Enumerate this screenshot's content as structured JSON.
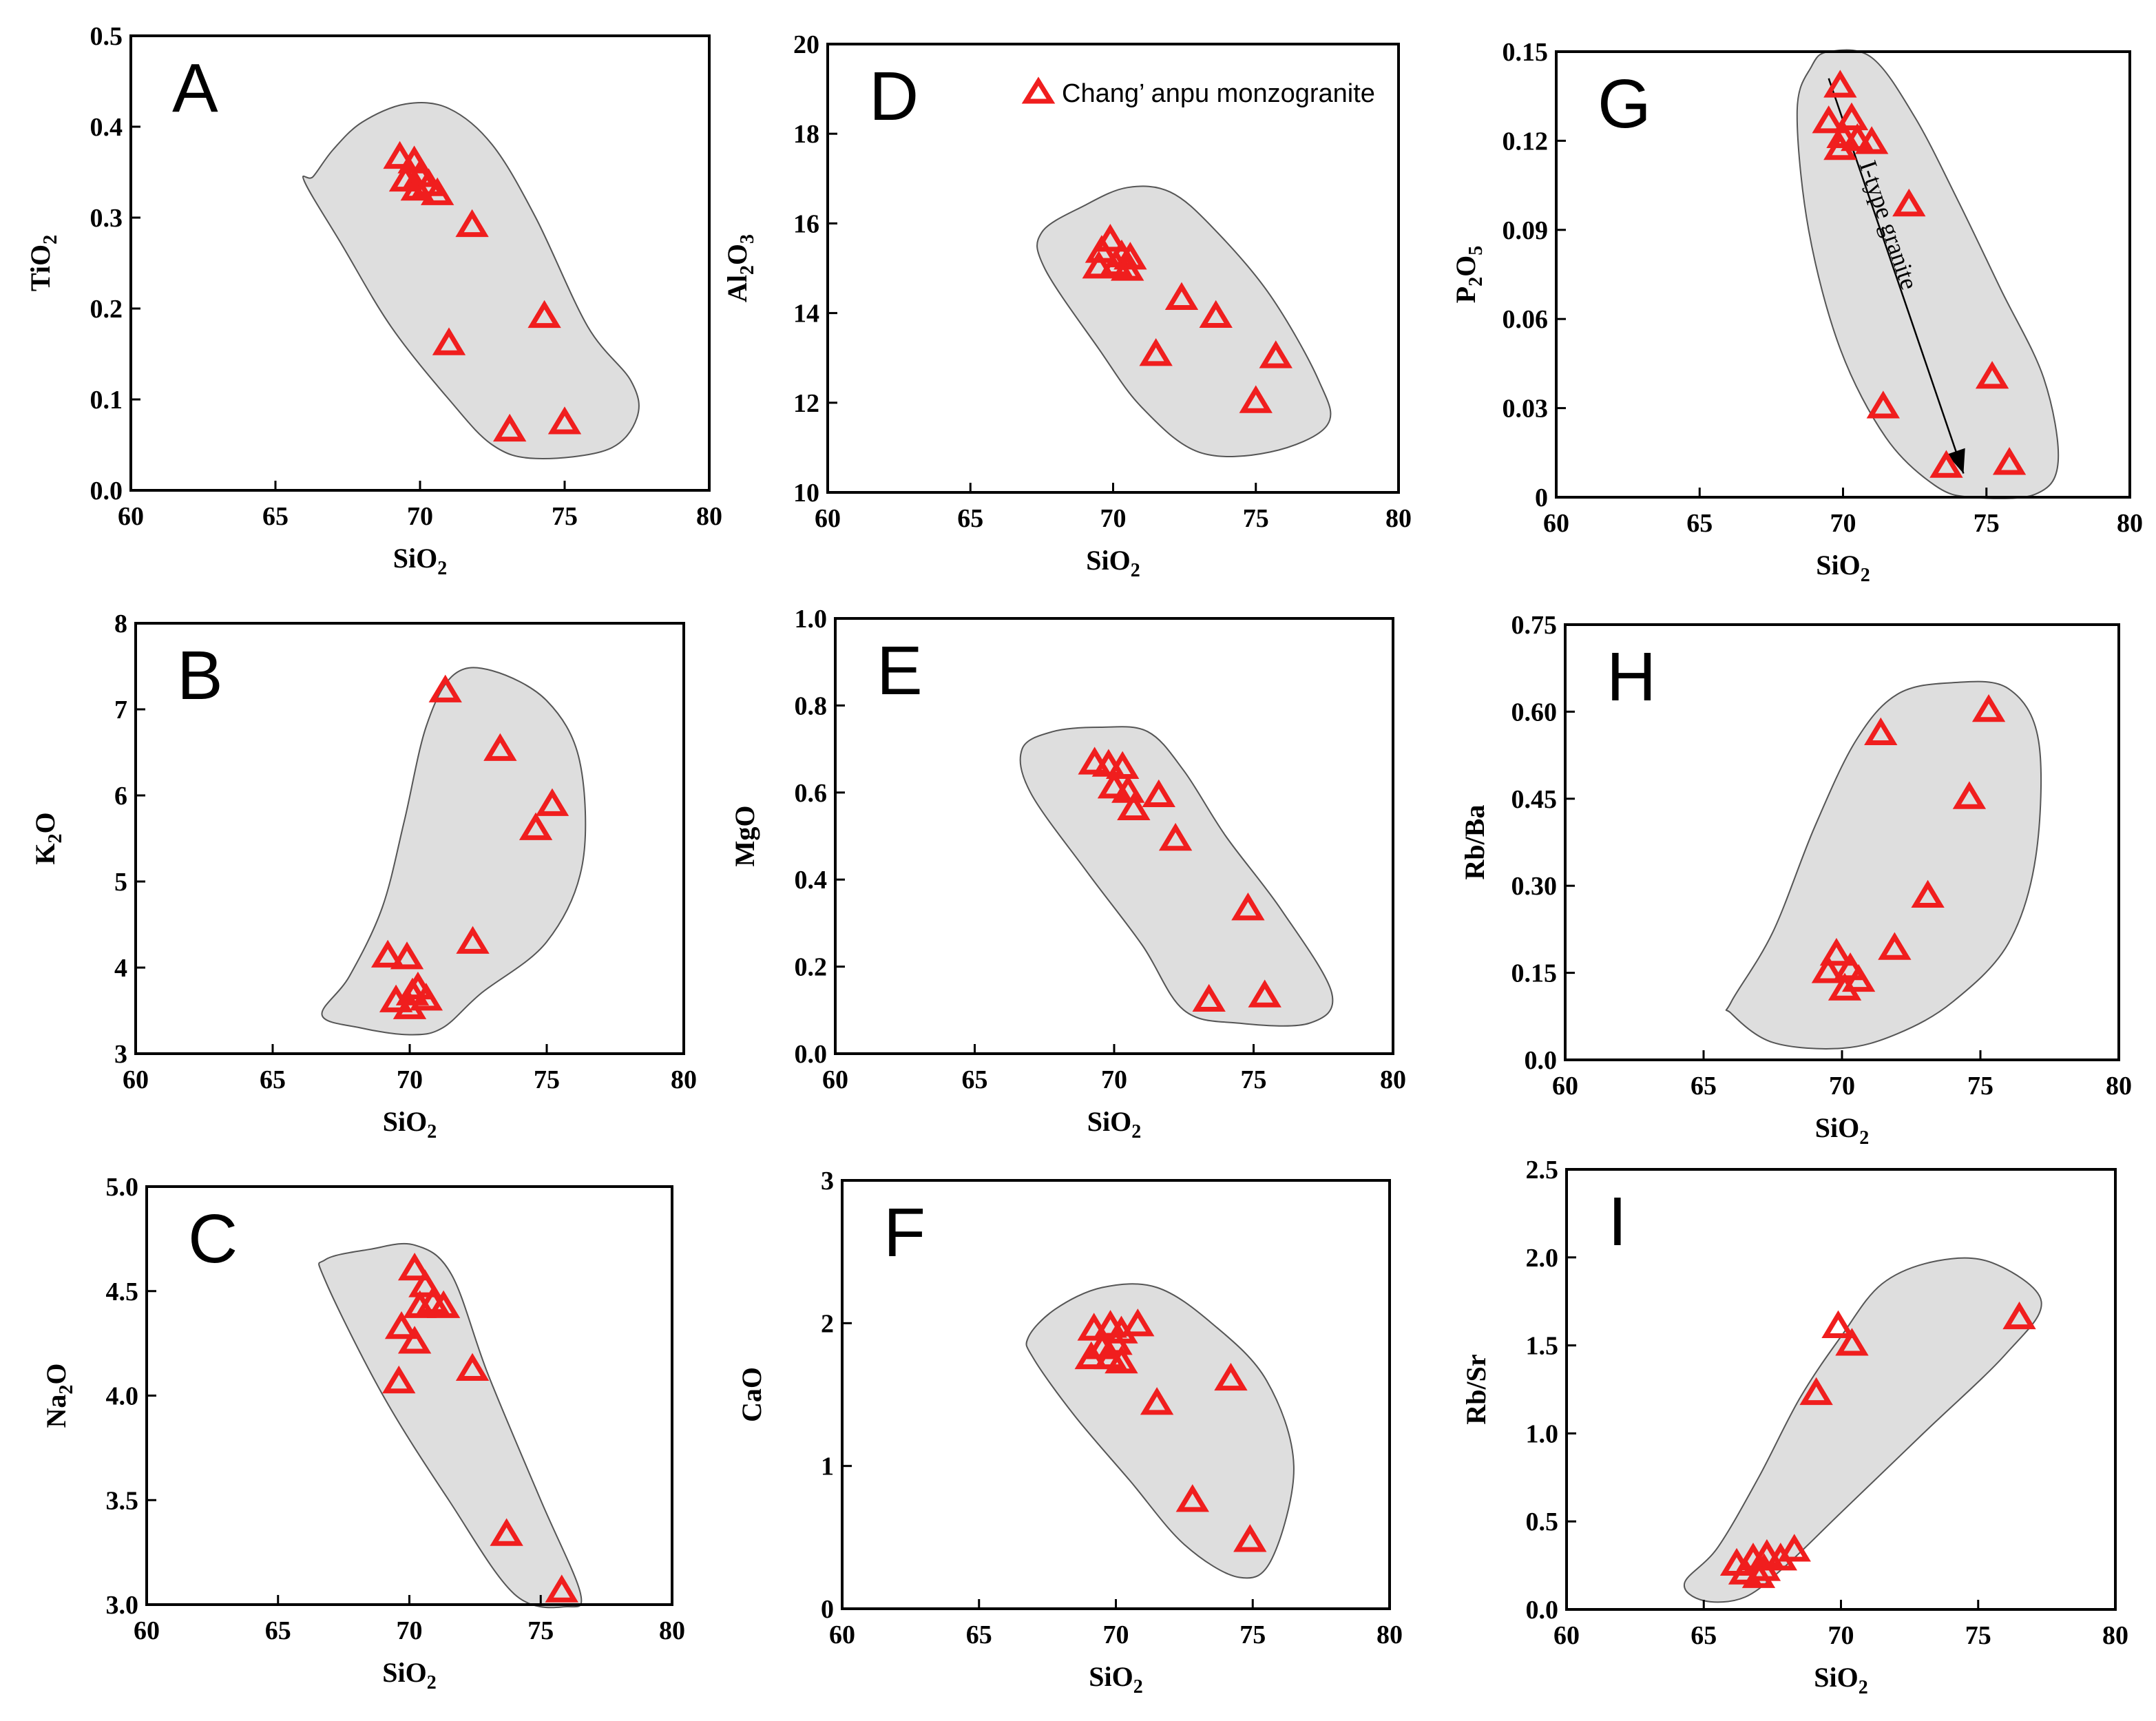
{
  "legend": {
    "label": "Chang’ anpu monzogranite",
    "marker_color": "#f01e1e"
  },
  "colors": {
    "marker": "#f01e1e",
    "field": "#dedede",
    "field_edge": "#555555"
  },
  "chart_data": [
    {
      "id": "A",
      "type": "scatter",
      "letter": "A",
      "xlabel": "SiO2",
      "ylabel": "TiO2",
      "xlim": [
        60,
        80
      ],
      "ylim": [
        0,
        0.5
      ],
      "xticks": [
        "60",
        "65",
        "70",
        "75",
        "80"
      ],
      "xtick_values": [
        60,
        65,
        70,
        75,
        80
      ],
      "yticks": [
        "0.0",
        "0.1",
        "0.2",
        "0.3",
        "0.4",
        "0.5"
      ],
      "ytick_values": [
        0,
        0.1,
        0.2,
        0.3,
        0.4,
        0.5
      ],
      "points": [
        [
          69.3,
          0.365
        ],
        [
          69.8,
          0.36
        ],
        [
          69.5,
          0.34
        ],
        [
          70.0,
          0.345
        ],
        [
          70.3,
          0.335
        ],
        [
          70.6,
          0.325
        ],
        [
          69.9,
          0.33
        ],
        [
          71.8,
          0.29
        ],
        [
          71.0,
          0.16
        ],
        [
          74.3,
          0.19
        ],
        [
          73.1,
          0.065
        ],
        [
          75.0,
          0.073
        ]
      ],
      "field": [
        [
          66.3,
          0.345
        ],
        [
          67.0,
          0.375
        ],
        [
          68.0,
          0.405
        ],
        [
          69.5,
          0.425
        ],
        [
          71.0,
          0.42
        ],
        [
          72.5,
          0.38
        ],
        [
          74.0,
          0.3
        ],
        [
          75.8,
          0.18
        ],
        [
          77.3,
          0.12
        ],
        [
          77.5,
          0.08
        ],
        [
          76.5,
          0.045
        ],
        [
          74.0,
          0.035
        ],
        [
          72.5,
          0.05
        ],
        [
          71.0,
          0.1
        ],
        [
          69.0,
          0.18
        ],
        [
          67.3,
          0.27
        ],
        [
          66.0,
          0.34
        ]
      ]
    },
    {
      "id": "B",
      "type": "scatter",
      "letter": "B",
      "xlabel": "SiO2",
      "ylabel": "K2O",
      "xlim": [
        60,
        80
      ],
      "ylim": [
        3,
        8
      ],
      "xticks": [
        "60",
        "65",
        "70",
        "75",
        "80"
      ],
      "xtick_values": [
        60,
        65,
        70,
        75,
        80
      ],
      "yticks": [
        "3",
        "4",
        "5",
        "6",
        "7",
        "8"
      ],
      "ytick_values": [
        3,
        4,
        5,
        6,
        7,
        8
      ],
      "points": [
        [
          69.2,
          4.12
        ],
        [
          69.9,
          4.1
        ],
        [
          69.5,
          3.6
        ],
        [
          70.0,
          3.52
        ],
        [
          70.3,
          3.75
        ],
        [
          70.6,
          3.62
        ],
        [
          70.1,
          3.68
        ],
        [
          72.3,
          4.28
        ],
        [
          71.3,
          7.2
        ],
        [
          73.3,
          6.52
        ],
        [
          74.6,
          5.6
        ],
        [
          75.2,
          5.88
        ]
      ],
      "field": [
        [
          66.8,
          3.45
        ],
        [
          67.8,
          3.9
        ],
        [
          69.0,
          4.7
        ],
        [
          69.8,
          5.7
        ],
        [
          70.6,
          6.8
        ],
        [
          71.6,
          7.4
        ],
        [
          73.0,
          7.45
        ],
        [
          75.0,
          7.1
        ],
        [
          76.2,
          6.4
        ],
        [
          76.3,
          5.2
        ],
        [
          75.0,
          4.3
        ],
        [
          72.6,
          3.7
        ],
        [
          71.2,
          3.3
        ],
        [
          70.0,
          3.22
        ],
        [
          68.2,
          3.3
        ]
      ]
    },
    {
      "id": "C",
      "type": "scatter",
      "letter": "C",
      "xlabel": "SiO2",
      "ylabel": "Na2O",
      "xlim": [
        60,
        80
      ],
      "ylim": [
        3.0,
        5.0
      ],
      "xticks": [
        "60",
        "65",
        "70",
        "75",
        "80"
      ],
      "xtick_values": [
        60,
        65,
        70,
        75,
        80
      ],
      "yticks": [
        "3.0",
        "3.5",
        "4.0",
        "4.5",
        "5.0"
      ],
      "ytick_values": [
        3.0,
        3.5,
        4.0,
        4.5,
        5.0
      ],
      "points": [
        [
          70.2,
          4.6
        ],
        [
          70.6,
          4.52
        ],
        [
          70.4,
          4.42
        ],
        [
          70.9,
          4.44
        ],
        [
          71.3,
          4.42
        ],
        [
          69.7,
          4.32
        ],
        [
          70.2,
          4.25
        ],
        [
          69.6,
          4.06
        ],
        [
          72.4,
          4.12
        ],
        [
          73.7,
          3.33
        ],
        [
          75.8,
          3.06
        ]
      ],
      "field": [
        [
          66.8,
          4.65
        ],
        [
          68.5,
          4.7
        ],
        [
          70.2,
          4.72
        ],
        [
          71.6,
          4.58
        ],
        [
          73.0,
          4.1
        ],
        [
          75.0,
          3.5
        ],
        [
          76.5,
          3.06
        ],
        [
          76.0,
          2.99
        ],
        [
          74.0,
          3.05
        ],
        [
          71.5,
          3.5
        ],
        [
          69.0,
          4.0
        ],
        [
          66.8,
          4.55
        ]
      ]
    },
    {
      "id": "D",
      "type": "scatter",
      "letter": "D",
      "xlabel": "SiO2",
      "ylabel": "Al2O3",
      "xlim": [
        60,
        80
      ],
      "ylim": [
        10,
        20
      ],
      "xticks": [
        "60",
        "65",
        "70",
        "75",
        "80"
      ],
      "xtick_values": [
        60,
        65,
        70,
        75,
        80
      ],
      "yticks": [
        "10",
        "12",
        "14",
        "16",
        "18",
        "20"
      ],
      "ytick_values": [
        10,
        12,
        14,
        16,
        18,
        20
      ],
      "points": [
        [
          69.9,
          15.6
        ],
        [
          69.6,
          15.35
        ],
        [
          70.3,
          15.25
        ],
        [
          70.6,
          15.2
        ],
        [
          69.5,
          15.0
        ],
        [
          70.1,
          15.05
        ],
        [
          70.5,
          14.95
        ],
        [
          72.4,
          14.3
        ],
        [
          73.6,
          13.9
        ],
        [
          71.5,
          13.05
        ],
        [
          75.7,
          13.0
        ],
        [
          75.0,
          12.0
        ]
      ],
      "field": [
        [
          67.5,
          15.8
        ],
        [
          69.0,
          16.4
        ],
        [
          70.5,
          16.8
        ],
        [
          72.0,
          16.7
        ],
        [
          73.5,
          15.9
        ],
        [
          75.5,
          14.4
        ],
        [
          77.2,
          12.5
        ],
        [
          77.5,
          11.5
        ],
        [
          75.5,
          10.9
        ],
        [
          73.0,
          10.9
        ],
        [
          71.0,
          11.9
        ],
        [
          69.5,
          13.2
        ],
        [
          67.6,
          15.0
        ]
      ]
    },
    {
      "id": "E",
      "type": "scatter",
      "letter": "E",
      "xlabel": "SiO2",
      "ylabel": "MgO",
      "xlim": [
        60,
        80
      ],
      "ylim": [
        0.0,
        1.0
      ],
      "xticks": [
        "60",
        "65",
        "70",
        "75",
        "80"
      ],
      "xtick_values": [
        60,
        65,
        70,
        75,
        80
      ],
      "yticks": [
        "0.0",
        "0.2",
        "0.4",
        "0.6",
        "0.8",
        "1.0"
      ],
      "ytick_values": [
        0,
        0.2,
        0.4,
        0.6,
        0.8,
        1.0
      ],
      "points": [
        [
          69.3,
          0.665
        ],
        [
          69.8,
          0.66
        ],
        [
          70.3,
          0.655
        ],
        [
          70.0,
          0.61
        ],
        [
          70.5,
          0.6
        ],
        [
          70.7,
          0.56
        ],
        [
          71.6,
          0.59
        ],
        [
          72.2,
          0.49
        ],
        [
          74.8,
          0.33
        ],
        [
          73.4,
          0.12
        ],
        [
          75.4,
          0.13
        ]
      ],
      "field": [
        [
          66.7,
          0.7
        ],
        [
          67.8,
          0.74
        ],
        [
          69.5,
          0.75
        ],
        [
          71.2,
          0.74
        ],
        [
          72.5,
          0.65
        ],
        [
          74.0,
          0.5
        ],
        [
          76.0,
          0.33
        ],
        [
          77.8,
          0.14
        ],
        [
          77.0,
          0.07
        ],
        [
          74.5,
          0.07
        ],
        [
          72.5,
          0.1
        ],
        [
          71.0,
          0.25
        ],
        [
          69.0,
          0.42
        ],
        [
          67.0,
          0.6
        ]
      ]
    },
    {
      "id": "F",
      "type": "scatter",
      "letter": "F",
      "xlabel": "SiO2",
      "ylabel": "CaO",
      "xlim": [
        60,
        80
      ],
      "ylim": [
        0,
        3
      ],
      "xticks": [
        "60",
        "65",
        "70",
        "75",
        "80"
      ],
      "xtick_values": [
        60,
        65,
        70,
        75,
        80
      ],
      "yticks": [
        "0",
        "1",
        "2",
        "3"
      ],
      "ytick_values": [
        0,
        1,
        2,
        3
      ],
      "points": [
        [
          69.2,
          1.95
        ],
        [
          69.8,
          1.97
        ],
        [
          70.2,
          1.93
        ],
        [
          69.5,
          1.82
        ],
        [
          70.0,
          1.85
        ],
        [
          69.1,
          1.75
        ],
        [
          69.8,
          1.75
        ],
        [
          70.2,
          1.72
        ],
        [
          70.8,
          1.98
        ],
        [
          71.5,
          1.43
        ],
        [
          74.2,
          1.6
        ],
        [
          72.8,
          0.75
        ],
        [
          74.9,
          0.47
        ]
      ],
      "field": [
        [
          66.8,
          1.9
        ],
        [
          67.8,
          2.1
        ],
        [
          69.5,
          2.25
        ],
        [
          71.5,
          2.25
        ],
        [
          73.5,
          2.0
        ],
        [
          75.5,
          1.6
        ],
        [
          76.5,
          1.0
        ],
        [
          75.7,
          0.35
        ],
        [
          74.5,
          0.22
        ],
        [
          72.5,
          0.45
        ],
        [
          70.5,
          0.9
        ],
        [
          68.5,
          1.35
        ],
        [
          67.0,
          1.75
        ]
      ]
    },
    {
      "id": "G",
      "type": "scatter",
      "letter": "G",
      "xlabel": "SiO2",
      "ylabel": "P2O5",
      "xlim": [
        60,
        80
      ],
      "ylim": [
        0,
        0.15
      ],
      "xticks": [
        "60",
        "65",
        "70",
        "75",
        "80"
      ],
      "xtick_values": [
        60,
        65,
        70,
        75,
        80
      ],
      "yticks": [
        "0",
        "0.03",
        "0.06",
        "0.09",
        "0.12",
        "0.15"
      ],
      "ytick_values": [
        0,
        0.03,
        0.06,
        0.09,
        0.12,
        0.15
      ],
      "points": [
        [
          69.9,
          0.138
        ],
        [
          70.3,
          0.127
        ],
        [
          69.5,
          0.126
        ],
        [
          70.0,
          0.121
        ],
        [
          70.5,
          0.12
        ],
        [
          69.9,
          0.117
        ],
        [
          71.0,
          0.119
        ],
        [
          72.3,
          0.098
        ],
        [
          71.4,
          0.03
        ],
        [
          75.2,
          0.04
        ],
        [
          73.6,
          0.01
        ],
        [
          75.8,
          0.011
        ]
      ],
      "field": [
        [
          69.5,
          0.15
        ],
        [
          71.0,
          0.148
        ],
        [
          72.5,
          0.128
        ],
        [
          74.0,
          0.1
        ],
        [
          75.5,
          0.07
        ],
        [
          77.0,
          0.04
        ],
        [
          77.5,
          0.012
        ],
        [
          76.7,
          0.001
        ],
        [
          74.5,
          0.0
        ],
        [
          73.2,
          0.004
        ],
        [
          71.5,
          0.02
        ],
        [
          69.9,
          0.05
        ],
        [
          68.8,
          0.09
        ],
        [
          68.4,
          0.13
        ],
        [
          68.9,
          0.145
        ]
      ],
      "trend": {
        "label": "I-type granite",
        "from": [
          69.5,
          0.141
        ],
        "to": [
          74.2,
          0.008
        ]
      }
    },
    {
      "id": "H",
      "type": "scatter",
      "letter": "H",
      "xlabel": "SiO2",
      "ylabel": "Rb/Ba",
      "xlim": [
        60,
        80
      ],
      "ylim": [
        0.0,
        0.75
      ],
      "xticks": [
        "60",
        "65",
        "70",
        "75",
        "80"
      ],
      "xtick_values": [
        60,
        65,
        70,
        75,
        80
      ],
      "yticks": [
        "0.0",
        "0.15",
        "0.30",
        "0.45",
        "0.60",
        "0.75"
      ],
      "ytick_values": [
        0,
        0.15,
        0.3,
        0.45,
        0.6,
        0.75
      ],
      "points": [
        [
          69.8,
          0.18
        ],
        [
          69.5,
          0.15
        ],
        [
          70.3,
          0.155
        ],
        [
          70.6,
          0.135
        ],
        [
          70.1,
          0.12
        ],
        [
          71.9,
          0.19
        ],
        [
          73.1,
          0.28
        ],
        [
          74.6,
          0.45
        ],
        [
          75.3,
          0.6
        ],
        [
          71.4,
          0.56
        ]
      ],
      "field": [
        [
          66.0,
          0.1
        ],
        [
          67.5,
          0.22
        ],
        [
          69.0,
          0.4
        ],
        [
          70.5,
          0.55
        ],
        [
          72.0,
          0.63
        ],
        [
          74.0,
          0.65
        ],
        [
          76.0,
          0.64
        ],
        [
          77.1,
          0.55
        ],
        [
          77.0,
          0.35
        ],
        [
          76.0,
          0.2
        ],
        [
          74.0,
          0.1
        ],
        [
          72.0,
          0.045
        ],
        [
          70.0,
          0.02
        ],
        [
          67.5,
          0.03
        ],
        [
          66.0,
          0.08
        ]
      ]
    },
    {
      "id": "I",
      "type": "scatter",
      "letter": "I",
      "xlabel": "SiO2",
      "ylabel": "Rb/Sr",
      "xlim": [
        60,
        80
      ],
      "ylim": [
        0.0,
        2.5
      ],
      "xticks": [
        "60",
        "65",
        "70",
        "75",
        "80"
      ],
      "xtick_values": [
        60,
        65,
        70,
        75,
        80
      ],
      "yticks": [
        "0.0",
        "0.5",
        "1.0",
        "1.5",
        "2.0",
        "2.5"
      ],
      "ytick_values": [
        0,
        0.5,
        1.0,
        1.5,
        2.0,
        2.5
      ],
      "points": [
        [
          66.2,
          0.25
        ],
        [
          66.8,
          0.28
        ],
        [
          67.3,
          0.3
        ],
        [
          67.8,
          0.28
        ],
        [
          68.3,
          0.33
        ],
        [
          66.5,
          0.2
        ],
        [
          67.0,
          0.18
        ],
        [
          67.2,
          0.22
        ],
        [
          69.1,
          1.22
        ],
        [
          69.9,
          1.6
        ],
        [
          70.4,
          1.5
        ],
        [
          76.5,
          1.65
        ]
      ],
      "field": [
        [
          64.3,
          0.15
        ],
        [
          65.5,
          0.35
        ],
        [
          67.0,
          0.75
        ],
        [
          68.5,
          1.2
        ],
        [
          70.0,
          1.55
        ],
        [
          71.5,
          1.85
        ],
        [
          73.5,
          1.98
        ],
        [
          75.5,
          1.97
        ],
        [
          77.3,
          1.75
        ],
        [
          76.0,
          1.45
        ],
        [
          73.0,
          1.0
        ],
        [
          70.0,
          0.55
        ],
        [
          68.0,
          0.25
        ],
        [
          66.5,
          0.07
        ],
        [
          65.0,
          0.05
        ]
      ]
    }
  ]
}
